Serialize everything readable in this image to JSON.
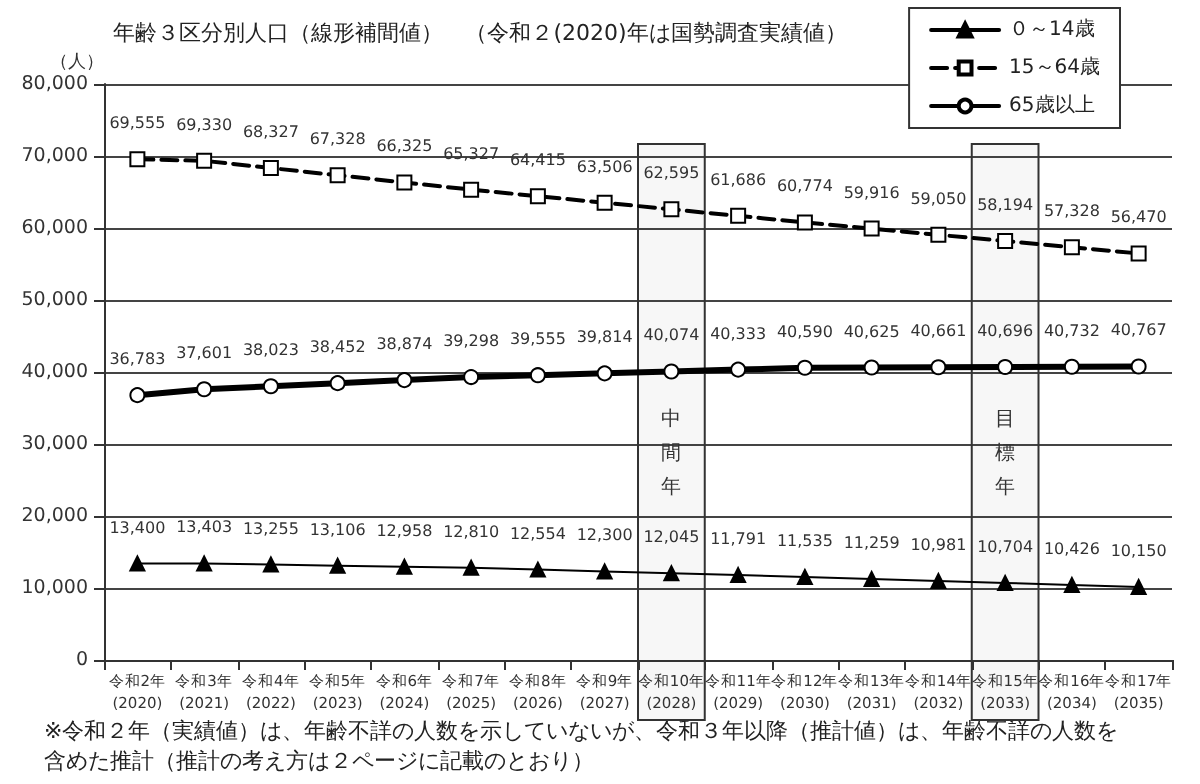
{
  "chart_data": {
    "type": "line",
    "title": "年齢３区分別人口（線形補間値）　（令和２(2020)年は国勢調査実績値）",
    "ylabel": "（人）",
    "categories": [
      "令和2年\n(2020)",
      "令和3年\n(2021)",
      "令和4年\n(2022)",
      "令和5年\n(2023)",
      "令和6年\n(2024)",
      "令和7年\n(2025)",
      "令和8年\n(2026)",
      "令和9年\n(2027)",
      "令和10年\n(2028)",
      "令和11年\n(2029)",
      "令和12年\n(2030)",
      "令和13年\n(2031)",
      "令和14年\n(2032)",
      "令和15年\n(2033)",
      "令和16年\n(2034)",
      "令和17年\n(2035)"
    ],
    "series": [
      {
        "name": "０～14歳",
        "color": "#000000",
        "marker": "triangle",
        "line_style": "solid",
        "values": [
          13400,
          13403,
          13255,
          13106,
          12958,
          12810,
          12554,
          12300,
          12045,
          11791,
          11535,
          11259,
          10981,
          10704,
          10426,
          10150
        ],
        "value_labels": [
          "13,400",
          "13,403",
          "13,255",
          "13,106",
          "12,958",
          "12,810",
          "12,554",
          "12,300",
          "12,045",
          "11,791",
          "11,535",
          "11,259",
          "10,981",
          "10,704",
          "10,426",
          "10,150"
        ]
      },
      {
        "name": "15～64歳",
        "color": "#000000",
        "marker": "square",
        "line_style": "dashed",
        "values": [
          69555,
          69330,
          68327,
          67328,
          66325,
          65327,
          64415,
          63506,
          62595,
          61686,
          60774,
          59916,
          59050,
          58194,
          57328,
          56470
        ],
        "value_labels": [
          "69,555",
          "69,330",
          "68,327",
          "67,328",
          "66,325",
          "65,327",
          "64,415",
          "63,506",
          "62,595",
          "61,686",
          "60,774",
          "59,916",
          "59,050",
          "58,194",
          "57,328",
          "56,470"
        ]
      },
      {
        "name": "65歳以上",
        "color": "#000000",
        "marker": "circle",
        "line_style": "solid",
        "values": [
          36783,
          37601,
          38023,
          38452,
          38874,
          39298,
          39555,
          39814,
          40074,
          40333,
          40590,
          40625,
          40661,
          40696,
          40732,
          40767
        ],
        "value_labels": [
          "36,783",
          "37,601",
          "38,023",
          "38,452",
          "38,874",
          "39,298",
          "39,555",
          "39,814",
          "40,074",
          "40,333",
          "40,590",
          "40,625",
          "40,661",
          "40,696",
          "40,732",
          "40,767"
        ]
      }
    ],
    "ylim": [
      0,
      80000
    ],
    "yticks": [
      0,
      {
        "value": 10000,
        "label": "10,000"
      },
      {
        "value": 20000,
        "label": "20,000"
      },
      {
        "value": 30000,
        "label": "30,000"
      },
      {
        "value": 40000,
        "label": "40,000"
      },
      {
        "value": 50000,
        "label": "50,000"
      },
      {
        "value": 60000,
        "label": "60,000"
      },
      {
        "value": 70000,
        "label": "70,000"
      },
      {
        "value": 80000,
        "label": "80,000"
      }
    ],
    "grid": "y",
    "legend": "top right",
    "bands": [
      {
        "axis": "x",
        "from": "令和10年\n(2028)",
        "to": "令和10年\n(2028)",
        "label": "中間年"
      },
      {
        "axis": "x",
        "from": "令和15年\n(2033)",
        "to": "令和15年\n(2033)",
        "label": "目標年"
      }
    ],
    "annotations": [
      "※令和２年（実績値）は、年齢不詳の人数を示していないが、令和３年以降（推計値）は、年齢不詳の人数を含めた推計（推計の考え方は２ページに記載のとおり）"
    ]
  }
}
